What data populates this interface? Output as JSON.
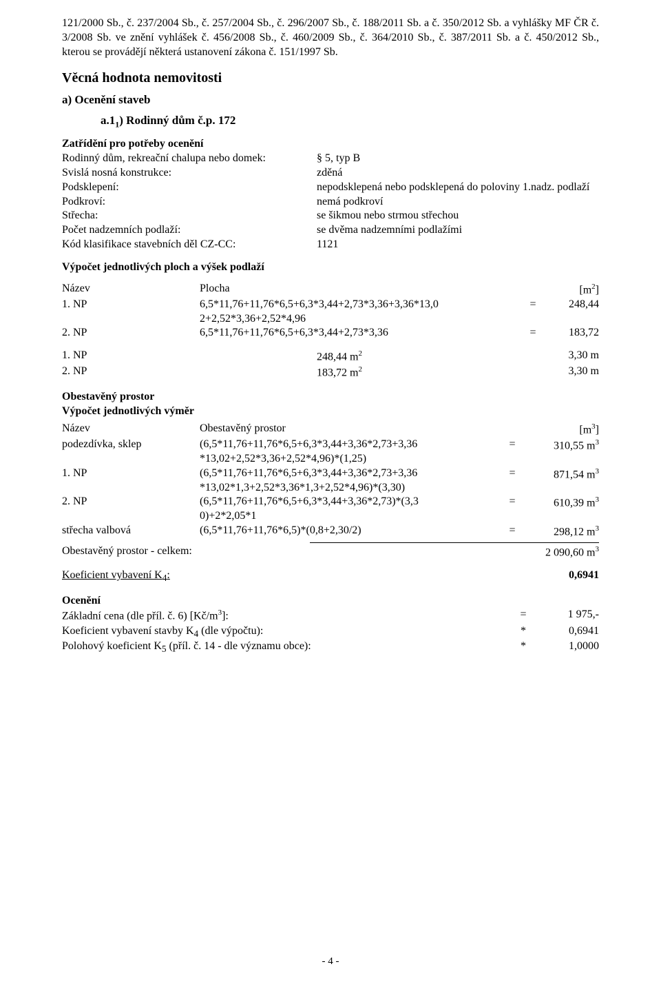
{
  "intro_para": "121/2000 Sb., č. 237/2004 Sb., č. 257/2004 Sb., č. 296/2007 Sb., č. 188/2011 Sb. a č. 350/2012 Sb. a vyhlášky MF ČR č. 3/2008 Sb. ve znění vyhlášek č. 456/2008 Sb., č. 460/2009 Sb., č. 364/2010 Sb., č. 387/2011 Sb. a č. 450/2012 Sb., kterou se provádějí některá ustanovení zákona č. 151/1997 Sb.",
  "section_title": "Věcná hodnota nemovitosti",
  "sub_a": "a) Ocenění staveb",
  "sub_a11_prefix": "a.1",
  "sub_a11_sub": "1",
  "sub_a11_rest": ") Rodinný dům č.p. 172",
  "zat_heading": "Zatřídění pro potřeby ocenění",
  "zat_rows": [
    {
      "l": "Rodinný dům, rekreační chalupa nebo domek:",
      "r": "§ 5, typ B"
    },
    {
      "l": "Svislá nosná konstrukce:",
      "r": "zděná"
    },
    {
      "l": "Podsklepení:",
      "r": "nepodsklepená nebo podsklepená do poloviny 1.nadz. podlaží"
    },
    {
      "l": "Podkroví:",
      "r": "nemá podkroví"
    },
    {
      "l": "Střecha:",
      "r": "se šikmou nebo strmou střechou"
    },
    {
      "l": "Počet nadzemních podlaží:",
      "r": "se dvěma nadzemními podlažími"
    },
    {
      "l": "Kód klasifikace stavebních děl CZ-CC:",
      "r": "1121"
    }
  ],
  "plochy_heading": "Výpočet jednotlivých ploch a výšek podlaží",
  "plochy_header": {
    "c1": "Název",
    "c2": "Plocha",
    "c3_html": "[m<sup>2</sup>]"
  },
  "plochy_rows": [
    {
      "c1": "1. NP",
      "c2": "6,5*11,76+11,76*6,5+6,3*3,44+2,73*3,36+3,36*13,0\n2+2,52*3,36+2,52*4,96",
      "eq": "=",
      "c3": "248,44"
    },
    {
      "c1": "2. NP",
      "c2": "6,5*11,76+11,76*6,5+6,3*3,44+2,73*3,36",
      "eq": "=",
      "c3": "183,72"
    }
  ],
  "np_rows": [
    {
      "n1": "1. NP",
      "n2_html": "248,44 m<sup>2</sup>",
      "n3": "3,30 m"
    },
    {
      "n1": "2. NP",
      "n2_html": "183,72 m<sup>2</sup>",
      "n3": "3,30 m"
    }
  ],
  "ob_heading1": "Obestavěný prostor",
  "ob_heading2": "Výpočet jednotlivých výměr",
  "ob_header": {
    "o1": "Název",
    "o2": "Obestavěný prostor",
    "o3_html": "[m<sup>3</sup>]"
  },
  "ob_rows": [
    {
      "o1": "podezdívka, sklep",
      "o2": "(6,5*11,76+11,76*6,5+6,3*3,44+3,36*2,73+3,36\n*13,02+2,52*3,36+2,52*4,96)*(1,25)",
      "eq": "=",
      "o3_html": "310,55 m<sup>3</sup>"
    },
    {
      "o1": "1. NP",
      "o2": "(6,5*11,76+11,76*6,5+6,3*3,44+3,36*2,73+3,36\n*13,02*1,3+2,52*3,36*1,3+2,52*4,96)*(3,30)",
      "eq": "=",
      "o3_html": "871,54 m<sup>3</sup>"
    },
    {
      "o1": "2. NP",
      "o2": "(6,5*11,76+11,76*6,5+6,3*3,44+3,36*2,73)*(3,3\n0)+2*2,05*1",
      "eq": "=",
      "o3_html": "610,39 m<sup>3</sup>"
    },
    {
      "o1": "střecha valbová",
      "o2": "(6,5*11,76+11,76*6,5)*(0,8+2,30/2)",
      "eq": "=",
      "o3_html": "298,12 m<sup>3</sup>"
    }
  ],
  "total_label": "Obestavěný prostor - celkem:",
  "total_value_html": "2 090,60 m<sup>3</sup>",
  "k4_label_html": "Koeficient vybavení K<sub>4</sub>:",
  "k4_value": "0,6941",
  "oc_heading": "Ocenění",
  "oc_rows": [
    {
      "q1_html": "Základní cena (dle příl. č. 6) [Kč/m<sup>3</sup>]:",
      "eq": "=",
      "q2": "1 975,-"
    },
    {
      "q1_html": "Koeficient vybavení stavby K<sub>4</sub> (dle výpočtu):",
      "eq": "*",
      "q2": "0,6941"
    },
    {
      "q1_html": "Polohový koeficient K<sub>5</sub> (příl. č. 14 - dle významu obce):",
      "eq": "*",
      "q2": "1,0000"
    }
  ],
  "footer": "- 4 -"
}
